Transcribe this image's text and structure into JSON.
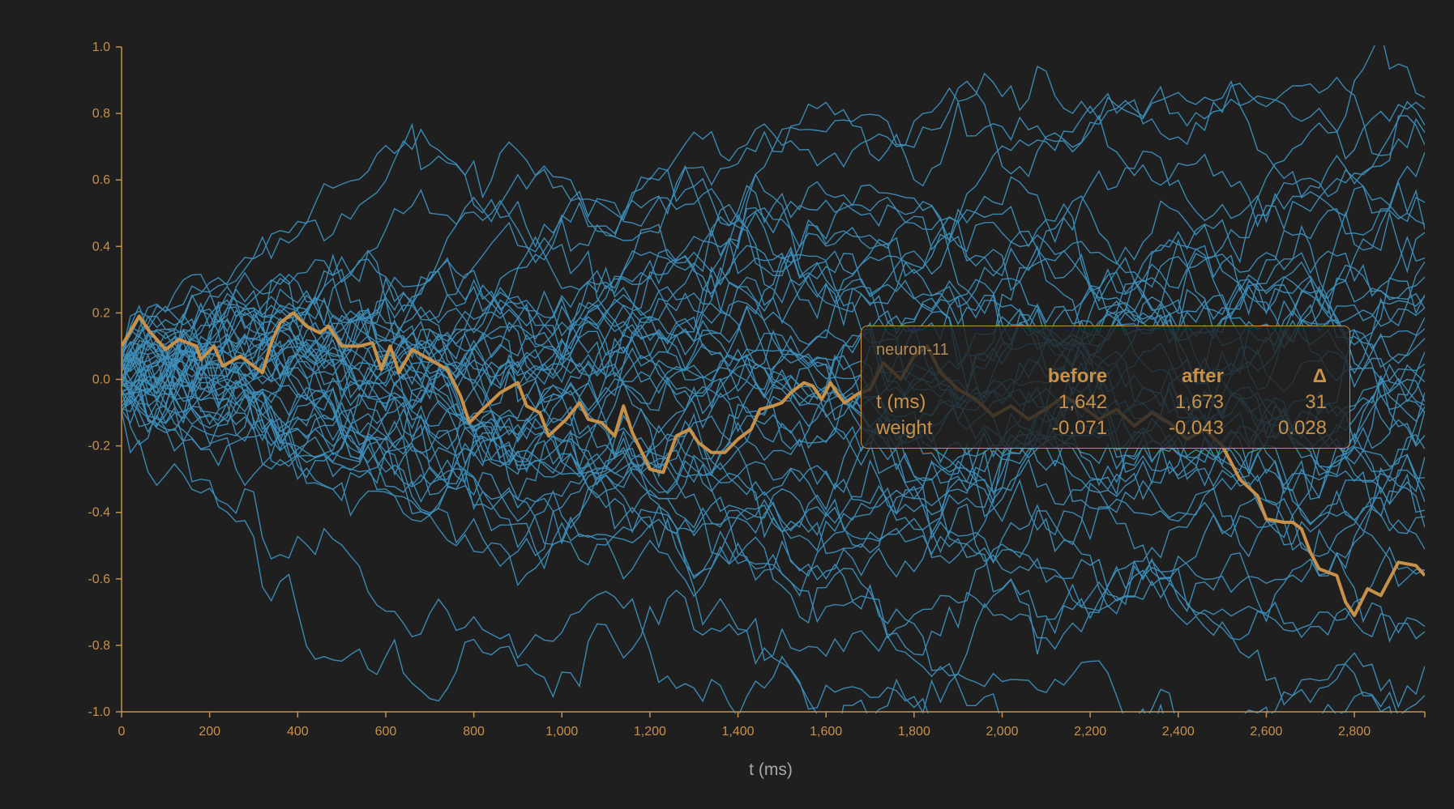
{
  "chart_data": {
    "type": "line",
    "title": "",
    "xlabel": "t (ms)",
    "ylabel": "",
    "xlim": [
      0,
      2960
    ],
    "ylim": [
      -1.0,
      1.0
    ],
    "x_ticks": [
      "0",
      "200",
      "400",
      "600",
      "800",
      "1,000",
      "1,200",
      "1,400",
      "1,600",
      "1,800",
      "2,000",
      "2,200",
      "2,400",
      "2,600",
      "2,800"
    ],
    "y_ticks": [
      "1.0",
      "0.8",
      "0.6",
      "0.4",
      "0.2",
      "0.0",
      "-0.2",
      "-0.4",
      "-0.6",
      "-0.8",
      "-1.0"
    ],
    "grid": false,
    "colors": {
      "background": "#1f1f1f",
      "series": "#3d8eb9",
      "highlight": "#c8914a",
      "axis": "#c8914a"
    },
    "background_series": {
      "count": 48,
      "description_note": ""
    },
    "highlight_series": {
      "name": "neuron-11",
      "points": [
        [
          0,
          0.1
        ],
        [
          40,
          0.19
        ],
        [
          60,
          0.15
        ],
        [
          100,
          0.09
        ],
        [
          130,
          0.12
        ],
        [
          170,
          0.1
        ],
        [
          180,
          0.06
        ],
        [
          210,
          0.1
        ],
        [
          230,
          0.04
        ],
        [
          270,
          0.07
        ],
        [
          300,
          0.04
        ],
        [
          320,
          0.02
        ],
        [
          340,
          0.11
        ],
        [
          360,
          0.17
        ],
        [
          390,
          0.2
        ],
        [
          420,
          0.16
        ],
        [
          450,
          0.14
        ],
        [
          470,
          0.16
        ],
        [
          500,
          0.1
        ],
        [
          540,
          0.1
        ],
        [
          570,
          0.11
        ],
        [
          590,
          0.03
        ],
        [
          610,
          0.1
        ],
        [
          630,
          0.02
        ],
        [
          660,
          0.09
        ],
        [
          700,
          0.06
        ],
        [
          740,
          0.03
        ],
        [
          770,
          -0.05
        ],
        [
          790,
          -0.13
        ],
        [
          820,
          -0.09
        ],
        [
          860,
          -0.04
        ],
        [
          900,
          -0.01
        ],
        [
          920,
          -0.08
        ],
        [
          950,
          -0.1
        ],
        [
          970,
          -0.17
        ],
        [
          1010,
          -0.12
        ],
        [
          1040,
          -0.07
        ],
        [
          1060,
          -0.12
        ],
        [
          1090,
          -0.13
        ],
        [
          1120,
          -0.17
        ],
        [
          1140,
          -0.08
        ],
        [
          1160,
          -0.16
        ],
        [
          1200,
          -0.27
        ],
        [
          1230,
          -0.28
        ],
        [
          1260,
          -0.17
        ],
        [
          1290,
          -0.15
        ],
        [
          1310,
          -0.19
        ],
        [
          1340,
          -0.22
        ],
        [
          1370,
          -0.22
        ],
        [
          1400,
          -0.18
        ],
        [
          1430,
          -0.15
        ],
        [
          1450,
          -0.09
        ],
        [
          1480,
          -0.08
        ],
        [
          1500,
          -0.07
        ],
        [
          1520,
          -0.04
        ],
        [
          1550,
          -0.01
        ],
        [
          1570,
          -0.02
        ],
        [
          1590,
          -0.06
        ],
        [
          1610,
          -0.01
        ],
        [
          1630,
          -0.05
        ],
        [
          1642,
          -0.071
        ],
        [
          1673,
          -0.043
        ],
        [
          1700,
          -0.03
        ],
        [
          1730,
          0.05
        ],
        [
          1770,
          0.0
        ],
        [
          1800,
          0.07
        ],
        [
          1830,
          0.1
        ],
        [
          1860,
          0.02
        ],
        [
          1900,
          -0.03
        ],
        [
          1940,
          -0.06
        ],
        [
          1980,
          -0.11
        ],
        [
          2020,
          -0.08
        ],
        [
          2060,
          -0.12
        ],
        [
          2100,
          -0.09
        ],
        [
          2140,
          -0.05
        ],
        [
          2180,
          -0.08
        ],
        [
          2220,
          -0.12
        ],
        [
          2260,
          -0.09
        ],
        [
          2300,
          -0.14
        ],
        [
          2340,
          -0.1
        ],
        [
          2380,
          -0.13
        ],
        [
          2420,
          -0.18
        ],
        [
          2460,
          -0.15
        ],
        [
          2500,
          -0.2
        ],
        [
          2520,
          -0.25
        ],
        [
          2540,
          -0.3
        ],
        [
          2580,
          -0.35
        ],
        [
          2600,
          -0.42
        ],
        [
          2640,
          -0.43
        ],
        [
          2660,
          -0.43
        ],
        [
          2680,
          -0.45
        ],
        [
          2700,
          -0.52
        ],
        [
          2720,
          -0.57
        ],
        [
          2760,
          -0.59
        ],
        [
          2780,
          -0.67
        ],
        [
          2800,
          -0.71
        ],
        [
          2830,
          -0.63
        ],
        [
          2860,
          -0.65
        ],
        [
          2900,
          -0.55
        ],
        [
          2940,
          -0.56
        ],
        [
          2960,
          -0.59
        ]
      ]
    }
  },
  "tooltip": {
    "title": "neuron-11",
    "headers": [
      "",
      "before",
      "after",
      "Δ"
    ],
    "rows": [
      {
        "label": "t (ms)",
        "before": "1,642",
        "after": "1,673",
        "delta": "31"
      },
      {
        "label": "weight",
        "before": "-0.071",
        "after": "-0.043",
        "delta": "0.028"
      }
    ]
  }
}
